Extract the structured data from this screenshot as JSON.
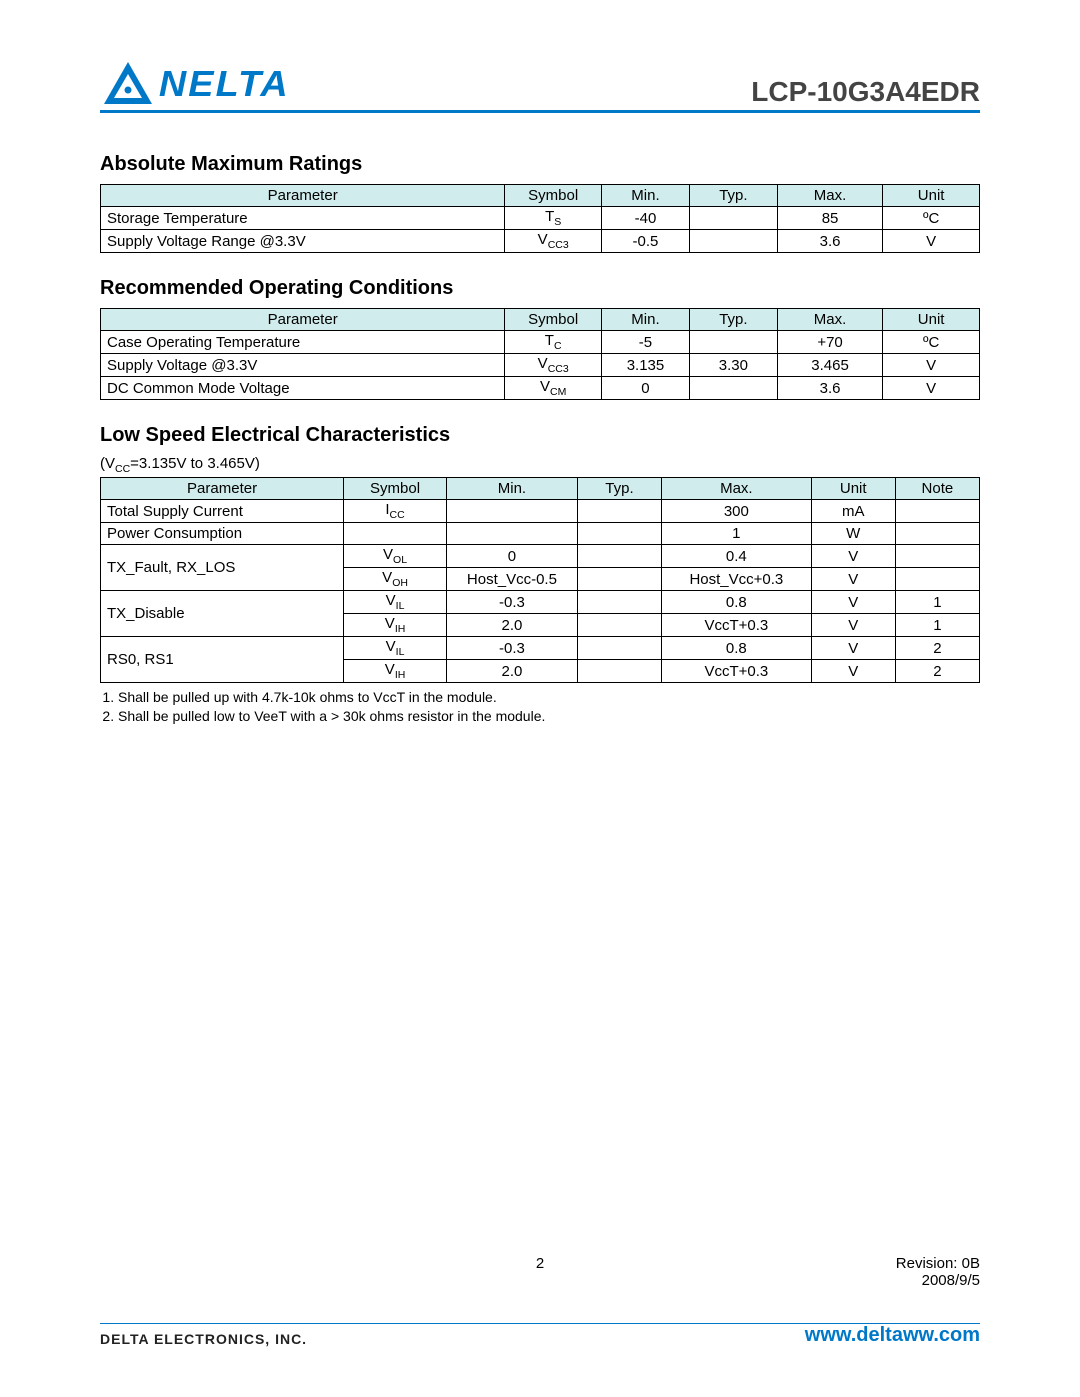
{
  "header": {
    "logo_text": "NELTA",
    "part_number": "LCP-10G3A4EDR",
    "logo_color": "#0078c8"
  },
  "sections": {
    "amr": {
      "title": "Absolute Maximum Ratings",
      "columns": [
        "Parameter",
        "Symbol",
        "Min.",
        "Typ.",
        "Max.",
        "Unit"
      ],
      "rows": [
        {
          "param": "Storage Temperature",
          "symbol": "T",
          "sub": "S",
          "min": "-40",
          "typ": "",
          "max": "85",
          "unit": "ºC"
        },
        {
          "param": "Supply Voltage Range @3.3V",
          "symbol": "V",
          "sub": "CC3",
          "min": "-0.5",
          "typ": "",
          "max": "3.6",
          "unit": "V"
        }
      ]
    },
    "roc": {
      "title": "Recommended Operating Conditions",
      "columns": [
        "Parameter",
        "Symbol",
        "Min.",
        "Typ.",
        "Max.",
        "Unit"
      ],
      "rows": [
        {
          "param": "Case Operating Temperature",
          "symbol": "T",
          "sub": "C",
          "min": "-5",
          "typ": "",
          "max": "+70",
          "unit": "ºC"
        },
        {
          "param": "Supply Voltage @3.3V",
          "symbol": "V",
          "sub": "CC3",
          "min": "3.135",
          "typ": "3.30",
          "max": "3.465",
          "unit": "V"
        },
        {
          "param": "DC Common Mode Voltage",
          "symbol": "V",
          "sub": "CM",
          "min": "0",
          "typ": "",
          "max": "3.6",
          "unit": "V"
        }
      ]
    },
    "lsec": {
      "title": "Low Speed Electrical Characteristics",
      "condition_prefix": "(V",
      "condition_sub": "CC",
      "condition_suffix": "=3.135V to 3.465V)",
      "columns": [
        "Parameter",
        "Symbol",
        "Min.",
        "Typ.",
        "Max.",
        "Unit",
        "Note"
      ],
      "rows": [
        {
          "param": "Total Supply Current",
          "rowspan": 1,
          "symbol": "I",
          "sub": "CC",
          "min": "",
          "typ": "",
          "max": "300",
          "unit": "mA",
          "note": ""
        },
        {
          "param": "Power Consumption",
          "rowspan": 1,
          "symbol": "",
          "sub": "",
          "min": "",
          "typ": "",
          "max": "1",
          "unit": "W",
          "note": ""
        },
        {
          "param": "TX_Fault, RX_LOS",
          "rowspan": 2,
          "symbol": "V",
          "sub": "OL",
          "min": "0",
          "typ": "",
          "max": "0.4",
          "unit": "V",
          "note": ""
        },
        {
          "param": "",
          "rowspan": 0,
          "symbol": "V",
          "sub": "OH",
          "min": "Host_Vcc-0.5",
          "typ": "",
          "max": "Host_Vcc+0.3",
          "unit": "V",
          "note": ""
        },
        {
          "param": "TX_Disable",
          "rowspan": 2,
          "symbol": "V",
          "sub": "IL",
          "min": "-0.3",
          "typ": "",
          "max": "0.8",
          "unit": "V",
          "note": "1"
        },
        {
          "param": "",
          "rowspan": 0,
          "symbol": "V",
          "sub": "IH",
          "min": "2.0",
          "typ": "",
          "max": "VccT+0.3",
          "unit": "V",
          "note": "1"
        },
        {
          "param": "RS0, RS1",
          "rowspan": 2,
          "symbol": "V",
          "sub": "IL",
          "min": "-0.3",
          "typ": "",
          "max": "0.8",
          "unit": "V",
          "note": "2"
        },
        {
          "param": "",
          "rowspan": 0,
          "symbol": "V",
          "sub": "IH",
          "min": "2.0",
          "typ": "",
          "max": "VccT+0.3",
          "unit": "V",
          "note": "2"
        }
      ],
      "footnotes": [
        "Shall be pulled up with 4.7k-10k ohms to VccT in the module.",
        "Shall be pulled low to VeeT with a  > 30k ohms resistor in the module."
      ]
    }
  },
  "footer": {
    "page": "2",
    "revision": "Revision:  0B",
    "date": "2008/9/5",
    "company": "DELTA ELECTRONICS, INC.",
    "url": "www.deltaww.com"
  },
  "style": {
    "header_bg": "#d0ecec",
    "border_color": "#000000",
    "accent": "#0078c8",
    "font_size_body": 15,
    "font_size_section": 20,
    "col_widths_6": [
      "46%",
      "11%",
      "10%",
      "10%",
      "12%",
      "11%"
    ],
    "col_widths_7": [
      "26%",
      "11%",
      "14%",
      "9%",
      "16%",
      "9%",
      "9%"
    ]
  }
}
